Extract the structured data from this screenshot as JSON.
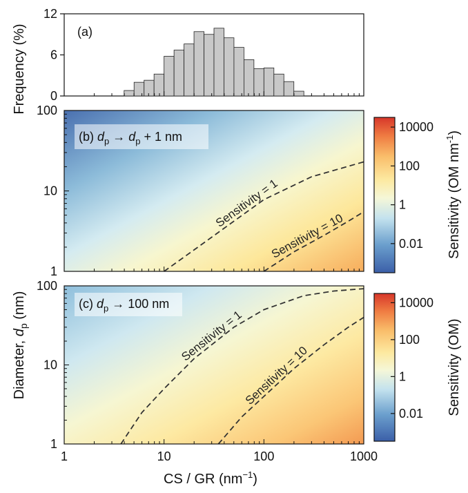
{
  "chart_data": [
    {
      "type": "bar",
      "panel_label": "(a)",
      "ylabel": "Frequency (%)",
      "yticks": [
        "0",
        "6",
        "12"
      ],
      "ylim": [
        0,
        12
      ],
      "x_scale": "log",
      "xlim": [
        1,
        1000
      ],
      "bin_edges": [
        3.98,
        5.01,
        6.31,
        7.94,
        10.0,
        12.59,
        15.85,
        19.95,
        25.12,
        31.62,
        39.81,
        50.12,
        63.1,
        79.43,
        100.0,
        125.89,
        158.49,
        199.53,
        251.19
      ],
      "values": [
        0.8,
        2.0,
        2.3,
        3.2,
        5.8,
        6.7,
        7.6,
        9.4,
        9.0,
        9.9,
        8.5,
        7.1,
        5.3,
        4.0,
        4.1,
        3.2,
        2.1,
        0.7
      ],
      "bar_color": "#c8c8c8"
    },
    {
      "type": "heatmap",
      "panel_label": "(b) d_p → d_p + 1 nm",
      "x_scale": "log",
      "y_scale": "log",
      "xlim": [
        1,
        1000
      ],
      "ylim": [
        1,
        100
      ],
      "xticks": [
        "1",
        "10",
        "100",
        "1000"
      ],
      "yticks": [
        "1",
        "10",
        "100"
      ],
      "contours": [
        {
          "label": "Sensitivity = 1",
          "points": [
            [
              10,
              1
            ],
            [
              20,
              1.85
            ],
            [
              50,
              4.2
            ],
            [
              100,
              7.8
            ],
            [
              300,
              15
            ],
            [
              1000,
              23
            ]
          ]
        },
        {
          "label": "Sensitivity = 10",
          "points": [
            [
              100,
              1
            ],
            [
              200,
              1.75
            ],
            [
              400,
              2.8
            ],
            [
              700,
              4.2
            ],
            [
              1000,
              5.5
            ]
          ]
        }
      ],
      "colorbar": {
        "ticks": [
          "10000",
          "100",
          "1",
          "0.01"
        ],
        "label": "Sensitivity (OM nm⁻¹)",
        "range_log10": [
          -3.5,
          4.5
        ]
      }
    },
    {
      "type": "heatmap",
      "panel_label": "(c) d_p → 100 nm",
      "x_scale": "log",
      "y_scale": "log",
      "xlim": [
        1,
        1000
      ],
      "ylim": [
        1,
        100
      ],
      "xticks": [
        "1",
        "10",
        "100",
        "1000"
      ],
      "yticks": [
        "1",
        "10",
        "100"
      ],
      "xlabel": "CS / GR (nm⁻¹)",
      "contours": [
        {
          "label": "Sensitivity = 1",
          "points": [
            [
              3.7,
              1
            ],
            [
              6,
              2.5
            ],
            [
              10,
              5
            ],
            [
              20,
              12
            ],
            [
              50,
              30
            ],
            [
              100,
              50
            ],
            [
              250,
              75
            ],
            [
              500,
              86
            ],
            [
              1000,
              92
            ]
          ]
        },
        {
          "label": "Sensitivity = 10",
          "points": [
            [
              35,
              1
            ],
            [
              60,
              2.2
            ],
            [
              100,
              4
            ],
            [
              200,
              9
            ],
            [
              400,
              18
            ],
            [
              700,
              30
            ],
            [
              1000,
              40
            ]
          ]
        }
      ],
      "colorbar": {
        "ticks": [
          "10000",
          "100",
          "1",
          "0.01"
        ],
        "label": "Sensitivity (OM)",
        "range_log10": [
          -3.5,
          4.5
        ]
      }
    }
  ],
  "shared": {
    "ylabel_heatmaps_prefix": "Diameter, ",
    "ylabel_heatmaps_var": "d",
    "ylabel_heatmaps_sub": "p",
    "ylabel_heatmaps_suffix": " (nm)",
    "colorscale": [
      "#3b5fa8",
      "#4e7fbd",
      "#83b4d8",
      "#c8e5f0",
      "#f3f6d9",
      "#fdf0a8",
      "#fbd27a",
      "#f6a458",
      "#ee6f3b",
      "#d7382a"
    ]
  }
}
